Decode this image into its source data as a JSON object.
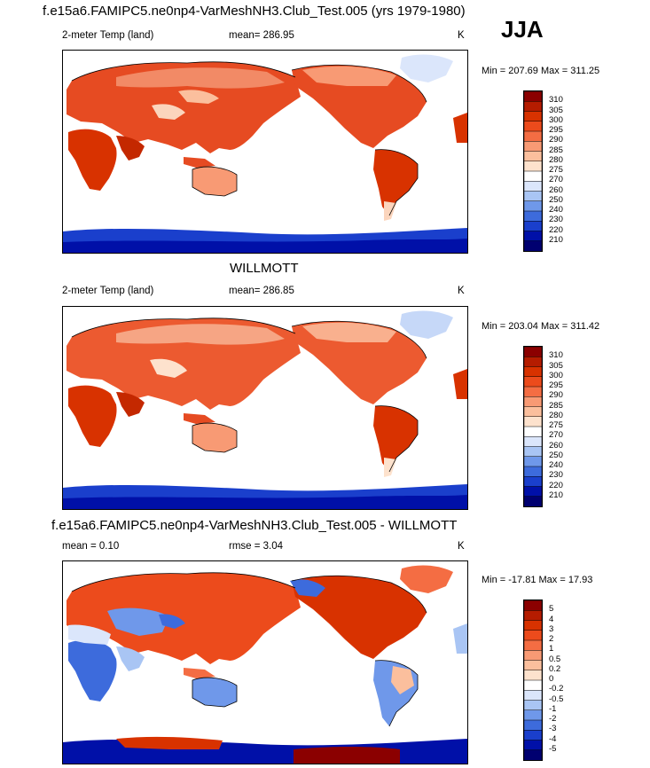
{
  "header": {
    "title": "f.e15a6.FAMIPC5.ne0np4-VarMeshNH3.Club_Test.005 (yrs 1979-1980)",
    "season": "JJA"
  },
  "panels": [
    {
      "id": "model",
      "title": "",
      "variable": "2-meter Temp (land)",
      "stat_label": "mean= 286.95",
      "units": "K",
      "minmax": "Min = 207.69 Max = 311.25"
    },
    {
      "id": "obs",
      "title": "WILLMOTT",
      "variable": "2-meter Temp (land)",
      "stat_label": "mean= 286.85",
      "units": "K",
      "minmax": "Min = 203.04 Max = 311.42"
    },
    {
      "id": "diff",
      "title": "f.e15a6.FAMIPC5.ne0np4-VarMeshNH3.Club_Test.005 - WILLMOTT",
      "mean_label": "mean =   0.10",
      "rmse_label": "rmse =   3.04",
      "units": "K",
      "minmax": "Min = -17.81 Max =  17.93"
    }
  ],
  "colorbars": {
    "temperature": {
      "labels": [
        "310",
        "305",
        "300",
        "295",
        "290",
        "285",
        "280",
        "275",
        "270",
        "260",
        "250",
        "240",
        "230",
        "220",
        "210"
      ],
      "colors": [
        "#8b0000",
        "#b51c00",
        "#d83200",
        "#ec4b1c",
        "#f46d43",
        "#f89a74",
        "#fbbf9d",
        "#fde2cd",
        "#ffffff",
        "#dbe6fb",
        "#a9c5f4",
        "#6f98ea",
        "#3d6bdc",
        "#1a3fcc",
        "#0010a8",
        "#000070"
      ]
    },
    "difference": {
      "labels": [
        "5",
        "4",
        "3",
        "2",
        "1",
        "0.5",
        "0.2",
        "0",
        "-0.2",
        "-0.5",
        "-1",
        "-2",
        "-3",
        "-4",
        "-5"
      ],
      "colors": [
        "#8b0000",
        "#b51c00",
        "#d83200",
        "#ec4b1c",
        "#f46d43",
        "#f89a74",
        "#fbbf9d",
        "#fde2cd",
        "#ffffff",
        "#dbe6fb",
        "#a9c5f4",
        "#6f98ea",
        "#3d6bdc",
        "#1a3fcc",
        "#0010a8",
        "#000070"
      ]
    }
  },
  "chart_data": [
    {
      "type": "heatmap",
      "title": "2-meter Temp (land)",
      "subtitle": "f.e15a6.FAMIPC5.ne0np4-VarMeshNH3.Club_Test.005 (yrs 1979-1980)",
      "season": "JJA",
      "units": "K",
      "mean": 286.95,
      "min": 207.69,
      "max": 311.25,
      "contour_levels": [
        210,
        220,
        230,
        240,
        250,
        260,
        270,
        275,
        280,
        285,
        290,
        295,
        300,
        305,
        310
      ]
    },
    {
      "type": "heatmap",
      "title": "WILLMOTT",
      "units": "K",
      "mean": 286.85,
      "min": 203.04,
      "max": 311.42,
      "contour_levels": [
        210,
        220,
        230,
        240,
        250,
        260,
        270,
        275,
        280,
        285,
        290,
        295,
        300,
        305,
        310
      ]
    },
    {
      "type": "heatmap",
      "title": "f.e15a6.FAMIPC5.ne0np4-VarMeshNH3.Club_Test.005 - WILLMOTT",
      "units": "K",
      "mean": 0.1,
      "rmse": 3.04,
      "min": -17.81,
      "max": 17.93,
      "contour_levels": [
        -5,
        -4,
        -3,
        -2,
        -1,
        -0.5,
        -0.2,
        0,
        0.2,
        0.5,
        1,
        2,
        3,
        4,
        5
      ]
    }
  ]
}
